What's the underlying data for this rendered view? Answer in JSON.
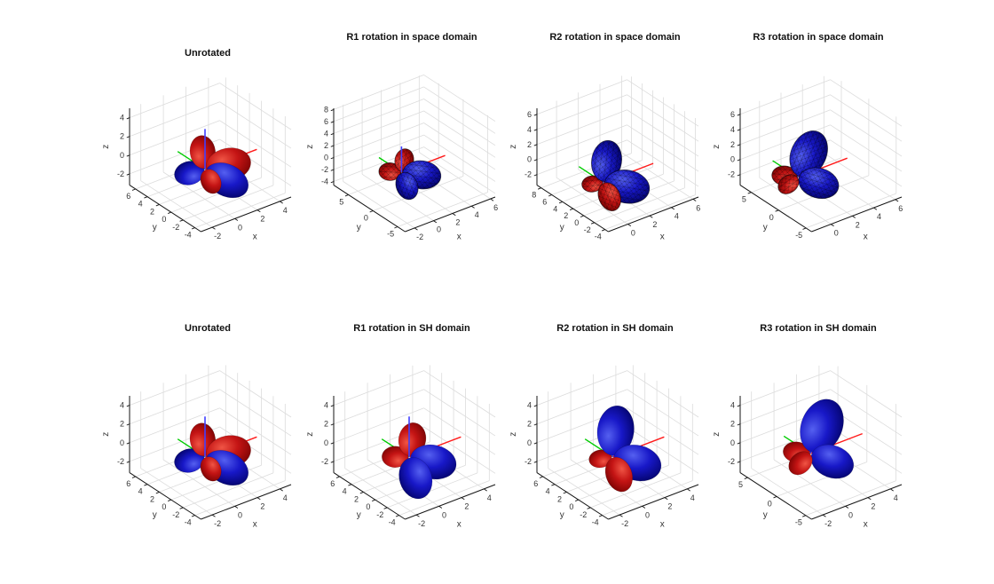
{
  "figure": {
    "background": "#ffffff",
    "colors": {
      "title_text": "#111111",
      "tick_text": "#333333",
      "axis_label_text": "#333333",
      "grid": "#dcdcdc",
      "ruler": "#151515",
      "axis_vector_x": "#ff1a1a",
      "axis_vector_y": "#00cc00",
      "axis_vector_z": "#4040ff"
    },
    "lobe_gradients": {
      "positive": [
        "#f05545",
        "#c41414",
        "#700000"
      ],
      "negative": [
        "#5560f0",
        "#1818c8",
        "#00005e"
      ]
    },
    "mesh_line_color": "#000000"
  },
  "chart_data": {
    "type": "3d-surface",
    "description": "Eight 3D spherical-harmonic lobe surfaces in a 2x4 grid comparing rotations applied in the space domain (top row, triangulated mesh surfaces) versus the SH coefficient domain (bottom row, smooth surfaces). Red lobes are positive values, blue lobes negative. Each axes shows red (+x), green (+y) and blue (+z) axis vectors from the origin.",
    "view": {
      "azimuth_deg": -37.5,
      "elevation_deg": 30
    },
    "rows": 2,
    "cols": 4,
    "layout": {
      "col_lefts": [
        109,
        339,
        568,
        797
      ],
      "row_tops": [
        8,
        332
      ],
      "grid_on": true
    },
    "subplots": [
      {
        "id": "unrotated-space",
        "row": 0,
        "col": 0,
        "title": "Unrotated",
        "title_dy": 46,
        "xlabel": "x",
        "ylabel": "y",
        "zlabel": "z",
        "xticks": [
          -2,
          0,
          2,
          4
        ],
        "yticks": [
          6,
          4,
          2,
          0,
          -2,
          -4
        ],
        "zticks": [
          4,
          2,
          0,
          -2
        ],
        "xlim": [
          -3,
          5
        ],
        "ylim": [
          -5,
          7
        ],
        "zlim": [
          -3.2,
          5
        ],
        "wireframe": false,
        "blue_line_front": true,
        "axis_vectors": {
          "x": 4.6,
          "y": 4.6,
          "z": 4.3
        },
        "lobes": [
          {
            "dir": [
              -0.1,
              1,
              -0.55
            ],
            "len": 4.6,
            "w": 0.4,
            "sign": "negative"
          },
          {
            "dir": [
              0.1,
              0.45,
              1
            ],
            "len": 3.0,
            "w": 0.4,
            "sign": "positive"
          },
          {
            "dir": [
              1,
              0.05,
              -0.25
            ],
            "len": 4.0,
            "w": 0.38,
            "sign": "positive"
          },
          {
            "dir": [
              1,
              -0.75,
              -1
            ],
            "len": 4.0,
            "w": 0.36,
            "sign": "negative"
          },
          {
            "dir": [
              0.2,
              -0.45,
              -1
            ],
            "len": 2.4,
            "w": 0.4,
            "sign": "positive"
          }
        ]
      },
      {
        "id": "r1-space",
        "row": 0,
        "col": 1,
        "title": "R1 rotation in space domain",
        "title_dy": 28,
        "xlabel": "x",
        "ylabel": "y",
        "zlabel": "z",
        "xticks": [
          -2,
          0,
          2,
          4,
          6
        ],
        "yticks": [
          5,
          0,
          -5
        ],
        "zticks": [
          8,
          6,
          4,
          2,
          0,
          -2,
          -4
        ],
        "xlim": [
          -3,
          6.5
        ],
        "ylim": [
          -6.5,
          8
        ],
        "zlim": [
          -4.6,
          8.2
        ],
        "wireframe": true,
        "blue_line_front": true,
        "axis_vectors": {
          "x": 4.6,
          "y": 4.6,
          "z": 4.3
        },
        "lobes": [
          {
            "dir": [
              -0.15,
              1,
              -0.5
            ],
            "len": 3.0,
            "w": 0.38,
            "sign": "negative"
          },
          {
            "dir": [
              -0.35,
              1,
              -0.25
            ],
            "len": 2.8,
            "w": 0.42,
            "sign": "positive"
          },
          {
            "dir": [
              0.35,
              0.3,
              1
            ],
            "len": 2.9,
            "w": 0.42,
            "sign": "positive"
          },
          {
            "dir": [
              1,
              -0.6,
              -0.55
            ],
            "len": 3.8,
            "w": 0.38,
            "sign": "negative"
          },
          {
            "dir": [
              0.15,
              -0.2,
              -1
            ],
            "len": 4.2,
            "w": 0.4,
            "sign": "negative"
          }
        ]
      },
      {
        "id": "r2-space",
        "row": 0,
        "col": 2,
        "title": "R2 rotation in space domain",
        "title_dy": 28,
        "xlabel": "x",
        "ylabel": "y",
        "zlabel": "z",
        "xticks": [
          0,
          2,
          4,
          6
        ],
        "yticks": [
          8,
          6,
          4,
          2,
          0,
          -2,
          -4
        ],
        "zticks": [
          6,
          4,
          2,
          0,
          -2
        ],
        "xlim": [
          -1.8,
          6.5
        ],
        "ylim": [
          -4.6,
          8.8
        ],
        "zlim": [
          -3.4,
          6.8
        ],
        "wireframe": true,
        "blue_line_front": false,
        "axis_vectors": {
          "x": 4.6,
          "y": 4.6,
          "z": 4.3
        },
        "lobes": [
          {
            "dir": [
              -0.25,
              1,
              -0.45
            ],
            "len": 2.8,
            "w": 0.4,
            "sign": "positive"
          },
          {
            "dir": [
              0.18,
              0.12,
              1
            ],
            "len": 4.6,
            "w": 0.38,
            "sign": "negative"
          },
          {
            "dir": [
              1,
              -0.6,
              -0.6
            ],
            "len": 4.0,
            "w": 0.38,
            "sign": "negative"
          },
          {
            "dir": [
              0.15,
              -0.35,
              -1
            ],
            "len": 3.4,
            "w": 0.38,
            "sign": "positive"
          }
        ]
      },
      {
        "id": "r3-space",
        "row": 0,
        "col": 3,
        "title": "R3 rotation in space domain",
        "title_dy": 28,
        "xlabel": "x",
        "ylabel": "y",
        "zlabel": "z",
        "xticks": [
          0,
          2,
          4,
          6
        ],
        "yticks": [
          5,
          0,
          -5
        ],
        "zticks": [
          6,
          4,
          2,
          0,
          -2
        ],
        "xlim": [
          -1.8,
          6.6
        ],
        "ylim": [
          -6,
          7
        ],
        "zlim": [
          -3.4,
          6.8
        ],
        "wireframe": true,
        "blue_line_front": false,
        "axis_vectors": {
          "x": 4.6,
          "y": 4.6,
          "z": 4.3
        },
        "lobes": [
          {
            "dir": [
              -0.55,
              0.95,
              0
            ],
            "len": 2.4,
            "w": 0.4,
            "sign": "positive"
          },
          {
            "dir": [
              0.6,
              0.25,
              1
            ],
            "len": 4.6,
            "w": 0.38,
            "sign": "negative"
          },
          {
            "dir": [
              1,
              -0.6,
              -0.8
            ],
            "len": 3.8,
            "w": 0.38,
            "sign": "negative"
          },
          {
            "dir": [
              -0.15,
              0.95,
              -1.05
            ],
            "len": 3.6,
            "w": 0.4,
            "sign": "positive"
          }
        ]
      },
      {
        "id": "unrotated-sh",
        "row": 1,
        "col": 0,
        "title": "Unrotated",
        "title_dy": 32,
        "xlabel": "x",
        "ylabel": "y",
        "zlabel": "z",
        "xticks": [
          -2,
          0,
          2,
          4
        ],
        "yticks": [
          6,
          4,
          2,
          0,
          -2,
          -4
        ],
        "zticks": [
          4,
          2,
          0,
          -2
        ],
        "xlim": [
          -3,
          5
        ],
        "ylim": [
          -5,
          7
        ],
        "zlim": [
          -3.2,
          5
        ],
        "wireframe": false,
        "blue_line_front": true,
        "axis_vectors": {
          "x": 4.6,
          "y": 4.6,
          "z": 4.3
        },
        "lobes": [
          {
            "dir": [
              -0.1,
              1,
              -0.55
            ],
            "len": 4.6,
            "w": 0.4,
            "sign": "negative"
          },
          {
            "dir": [
              0.1,
              0.45,
              1
            ],
            "len": 3.0,
            "w": 0.4,
            "sign": "positive"
          },
          {
            "dir": [
              1,
              0.05,
              -0.25
            ],
            "len": 4.0,
            "w": 0.38,
            "sign": "positive"
          },
          {
            "dir": [
              1,
              -0.75,
              -1
            ],
            "len": 4.0,
            "w": 0.36,
            "sign": "negative"
          },
          {
            "dir": [
              0.2,
              -0.45,
              -1
            ],
            "len": 2.4,
            "w": 0.4,
            "sign": "positive"
          }
        ]
      },
      {
        "id": "r1-sh",
        "row": 1,
        "col": 1,
        "title": "R1 rotation in SH domain",
        "title_dy": 32,
        "xlabel": "x",
        "ylabel": "y",
        "zlabel": "z",
        "xticks": [
          -2,
          0,
          2,
          4
        ],
        "yticks": [
          6,
          4,
          2,
          0,
          -2,
          -4
        ],
        "zticks": [
          4,
          2,
          0,
          -2
        ],
        "xlim": [
          -3,
          5
        ],
        "ylim": [
          -5,
          7
        ],
        "zlim": [
          -3.2,
          5
        ],
        "wireframe": false,
        "blue_line_front": true,
        "axis_vectors": {
          "x": 4.6,
          "y": 4.6,
          "z": 4.3
        },
        "lobes": [
          {
            "dir": [
              -0.15,
              1,
              -0.5
            ],
            "len": 3.0,
            "w": 0.38,
            "sign": "negative"
          },
          {
            "dir": [
              -0.35,
              1,
              -0.25
            ],
            "len": 2.8,
            "w": 0.42,
            "sign": "positive"
          },
          {
            "dir": [
              0.35,
              0.3,
              1
            ],
            "len": 2.9,
            "w": 0.42,
            "sign": "positive"
          },
          {
            "dir": [
              1,
              -0.6,
              -0.55
            ],
            "len": 3.8,
            "w": 0.38,
            "sign": "negative"
          },
          {
            "dir": [
              0.15,
              -0.2,
              -1
            ],
            "len": 4.2,
            "w": 0.4,
            "sign": "negative"
          }
        ]
      },
      {
        "id": "r2-sh",
        "row": 1,
        "col": 2,
        "title": "R2 rotation in SH domain",
        "title_dy": 32,
        "xlabel": "x",
        "ylabel": "y",
        "zlabel": "z",
        "xticks": [
          -2,
          0,
          2,
          4
        ],
        "yticks": [
          6,
          4,
          2,
          0,
          -2,
          -4
        ],
        "zticks": [
          4,
          2,
          0,
          -2
        ],
        "xlim": [
          -3,
          5
        ],
        "ylim": [
          -5,
          7
        ],
        "zlim": [
          -3.2,
          5
        ],
        "wireframe": false,
        "blue_line_front": false,
        "axis_vectors": {
          "x": 4.6,
          "y": 4.6,
          "z": 4.3
        },
        "lobes": [
          {
            "dir": [
              -0.25,
              1,
              -0.45
            ],
            "len": 2.8,
            "w": 0.4,
            "sign": "positive"
          },
          {
            "dir": [
              0.18,
              0.12,
              1
            ],
            "len": 4.6,
            "w": 0.38,
            "sign": "negative"
          },
          {
            "dir": [
              1,
              -0.6,
              -0.6
            ],
            "len": 4.0,
            "w": 0.38,
            "sign": "negative"
          },
          {
            "dir": [
              0.15,
              -0.35,
              -1
            ],
            "len": 3.4,
            "w": 0.38,
            "sign": "positive"
          }
        ]
      },
      {
        "id": "r3-sh",
        "row": 1,
        "col": 3,
        "title": "R3 rotation in SH domain",
        "title_dy": 32,
        "xlabel": "x",
        "ylabel": "y",
        "zlabel": "z",
        "xticks": [
          -2,
          0,
          2,
          4
        ],
        "yticks": [
          5,
          0,
          -5
        ],
        "zticks": [
          4,
          2,
          0,
          -2
        ],
        "xlim": [
          -3,
          5
        ],
        "ylim": [
          -6,
          6.3
        ],
        "zlim": [
          -3.2,
          5
        ],
        "wireframe": false,
        "blue_line_front": false,
        "axis_vectors": {
          "x": 4.6,
          "y": 4.6,
          "z": 4.3
        },
        "lobes": [
          {
            "dir": [
              -0.55,
              0.95,
              0
            ],
            "len": 2.4,
            "w": 0.4,
            "sign": "positive"
          },
          {
            "dir": [
              0.6,
              0.25,
              1
            ],
            "len": 4.6,
            "w": 0.38,
            "sign": "negative"
          },
          {
            "dir": [
              1,
              -0.6,
              -0.8
            ],
            "len": 3.8,
            "w": 0.38,
            "sign": "negative"
          },
          {
            "dir": [
              -0.15,
              0.95,
              -1.05
            ],
            "len": 3.6,
            "w": 0.4,
            "sign": "positive"
          }
        ]
      }
    ]
  }
}
